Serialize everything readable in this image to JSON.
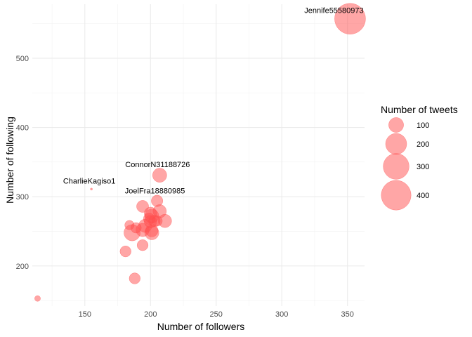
{
  "chart_data": {
    "type": "scatter",
    "xlabel": "Number of followers",
    "ylabel": "Number of following",
    "xlim": [
      110,
      363
    ],
    "ylim": [
      142,
      578
    ],
    "x_ticks": [
      150,
      200,
      250,
      300,
      350
    ],
    "y_ticks": [
      200,
      300,
      400,
      500
    ],
    "grid": true,
    "color": "#ff4d4d",
    "size_legend": {
      "title": "Number of tweets",
      "placement": "right",
      "values": [
        100,
        200,
        300,
        400
      ]
    },
    "points": [
      {
        "x": 352,
        "y": 557,
        "size": 430,
        "label": "Jennife55580973"
      },
      {
        "x": 207,
        "y": 331,
        "size": 90,
        "label": "ConnorN31188726"
      },
      {
        "x": 155,
        "y": 311,
        "size": 2,
        "label": "CharlieKagiso1"
      },
      {
        "x": 205,
        "y": 294,
        "size": 60,
        "label": "JoelFra18880985"
      },
      {
        "x": 114,
        "y": 153,
        "size": 15,
        "label": ""
      },
      {
        "x": 188,
        "y": 182,
        "size": 55,
        "label": ""
      },
      {
        "x": 181,
        "y": 221,
        "size": 55,
        "label": ""
      },
      {
        "x": 194,
        "y": 230,
        "size": 55,
        "label": ""
      },
      {
        "x": 186,
        "y": 248,
        "size": 120,
        "label": ""
      },
      {
        "x": 194,
        "y": 252,
        "size": 80,
        "label": ""
      },
      {
        "x": 189,
        "y": 255,
        "size": 50,
        "label": ""
      },
      {
        "x": 184,
        "y": 259,
        "size": 40,
        "label": ""
      },
      {
        "x": 196,
        "y": 258,
        "size": 80,
        "label": ""
      },
      {
        "x": 201,
        "y": 248,
        "size": 90,
        "label": ""
      },
      {
        "x": 201,
        "y": 251,
        "size": 70,
        "label": ""
      },
      {
        "x": 200,
        "y": 264,
        "size": 70,
        "label": ""
      },
      {
        "x": 199,
        "y": 268,
        "size": 60,
        "label": ""
      },
      {
        "x": 201,
        "y": 272,
        "size": 90,
        "label": ""
      },
      {
        "x": 200,
        "y": 276,
        "size": 70,
        "label": ""
      },
      {
        "x": 203,
        "y": 265,
        "size": 60,
        "label": ""
      },
      {
        "x": 205,
        "y": 265,
        "size": 50,
        "label": ""
      },
      {
        "x": 211,
        "y": 265,
        "size": 80,
        "label": ""
      },
      {
        "x": 207,
        "y": 279,
        "size": 80,
        "label": ""
      },
      {
        "x": 194,
        "y": 286,
        "size": 65,
        "label": ""
      }
    ]
  }
}
